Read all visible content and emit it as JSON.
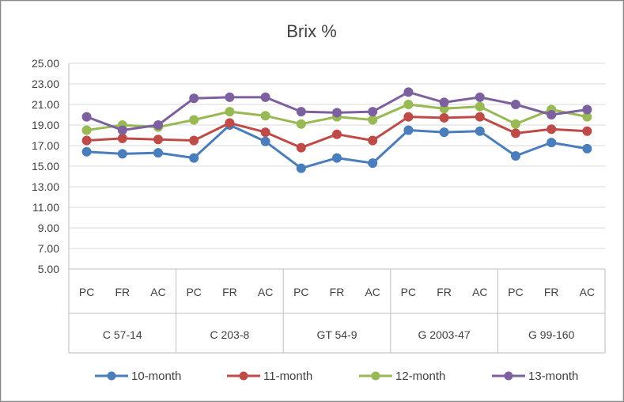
{
  "chart_data": {
    "type": "line",
    "title": "Brix %",
    "xlabel": "",
    "ylabel": "",
    "ylim": [
      5,
      25
    ],
    "yticks": [
      "5.00",
      "7.00",
      "9.00",
      "11.00",
      "13.00",
      "15.00",
      "17.00",
      "19.00",
      "21.00",
      "23.00",
      "25.00"
    ],
    "grid": true,
    "legend_position": "bottom",
    "groups": [
      "C 57-14",
      "C 203-8",
      "GT 54-9",
      "G 2003-47",
      "G 99-160"
    ],
    "categories": [
      "PC",
      "FR",
      "AC",
      "PC",
      "FR",
      "AC",
      "PC",
      "FR",
      "AC",
      "PC",
      "FR",
      "AC",
      "PC",
      "FR",
      "AC"
    ],
    "series": [
      {
        "name": "10-month",
        "color": "#4a7dbb",
        "values": [
          16.4,
          16.2,
          16.3,
          15.8,
          19.0,
          17.4,
          14.8,
          15.8,
          15.3,
          18.5,
          18.3,
          18.4,
          16.0,
          17.3,
          16.7
        ]
      },
      {
        "name": "11-month",
        "color": "#be4b48",
        "values": [
          17.5,
          17.7,
          17.6,
          17.5,
          19.2,
          18.3,
          16.8,
          18.1,
          17.5,
          19.8,
          19.7,
          19.8,
          18.2,
          18.6,
          18.4
        ]
      },
      {
        "name": "12-month",
        "color": "#98b954",
        "values": [
          18.5,
          19.0,
          18.8,
          19.5,
          20.3,
          19.9,
          19.1,
          19.8,
          19.5,
          21.0,
          20.6,
          20.8,
          19.1,
          20.5,
          19.8
        ]
      },
      {
        "name": "13-month",
        "color": "#7d60a0",
        "values": [
          19.8,
          18.5,
          19.0,
          21.6,
          21.7,
          21.7,
          20.3,
          20.2,
          20.3,
          22.2,
          21.2,
          21.7,
          21.0,
          20.0,
          20.5
        ]
      }
    ]
  }
}
